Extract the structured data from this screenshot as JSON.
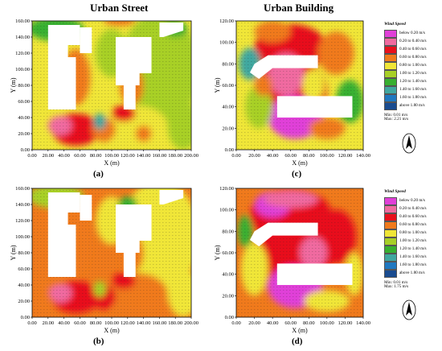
{
  "titles": {
    "left": "Urban Street",
    "right": "Urban Building"
  },
  "legend": {
    "title": "Wind Speed",
    "entries": [
      {
        "label": "below 0.20 m/s",
        "color": "#e040d8"
      },
      {
        "label": "0.20 to 0.40 m/s",
        "color": "#f06aa0"
      },
      {
        "label": "0.40 to 0.60 m/s",
        "color": "#e8101c"
      },
      {
        "label": "0.60 to 0.80 m/s",
        "color": "#f07a1c"
      },
      {
        "label": "0.80 to 1.00 m/s",
        "color": "#f0e638"
      },
      {
        "label": "1.00 to 1.20 m/s",
        "color": "#a8d028"
      },
      {
        "label": "1.20 to 1.40 m/s",
        "color": "#38b030"
      },
      {
        "label": "1.40 to 1.60 m/s",
        "color": "#40a8a0"
      },
      {
        "label": "1.60 to 1.80 m/s",
        "color": "#2078c0"
      },
      {
        "label": "above 1.80 m/s",
        "color": "#1a4c90"
      }
    ]
  },
  "chart_data": [
    {
      "type": "heatmap",
      "panel": "(a)",
      "xlabel": "X (m)",
      "ylabel": "Y (m)",
      "xlim": [
        0,
        200
      ],
      "ylim": [
        0,
        160
      ],
      "xticks": [
        "0.00",
        "20.00",
        "40.00",
        "60.00",
        "80.00",
        "100.00",
        "120.00",
        "140.00",
        "160.00",
        "180.00",
        "200.00"
      ],
      "yticks": [
        "0.00",
        "20.00",
        "40.00",
        "60.00",
        "80.00",
        "100.00",
        "120.00",
        "140.00",
        "160.00"
      ],
      "min": "",
      "max": ""
    },
    {
      "type": "heatmap",
      "panel": "(c)",
      "xlabel": "X (m)",
      "ylabel": "Y (m)",
      "xlim": [
        0,
        140
      ],
      "ylim": [
        0,
        120
      ],
      "xticks": [
        "0.00",
        "20.00",
        "40.00",
        "60.00",
        "80.00",
        "100.00",
        "120.00",
        "140.00"
      ],
      "yticks": [
        "0.00",
        "20.00",
        "40.00",
        "60.00",
        "80.00",
        "100.00",
        "120.00"
      ],
      "min": "Min: 0.01 m/s",
      "max": "Max: 2.21 m/s"
    },
    {
      "type": "heatmap",
      "panel": "(b)",
      "xlabel": "X (m)",
      "ylabel": "Y (m)",
      "xlim": [
        0,
        200
      ],
      "ylim": [
        0,
        160
      ],
      "xticks": [
        "0.00",
        "20.00",
        "40.00",
        "60.00",
        "80.00",
        "100.00",
        "120.00",
        "140.00",
        "160.00",
        "180.00",
        "200.00"
      ],
      "yticks": [
        "0.00",
        "20.00",
        "40.00",
        "60.00",
        "80.00",
        "100.00",
        "120.00",
        "140.00",
        "160.00"
      ],
      "min": "",
      "max": ""
    },
    {
      "type": "heatmap",
      "panel": "(d)",
      "xlabel": "X (m)",
      "ylabel": "Y (m)",
      "xlim": [
        0,
        140
      ],
      "ylim": [
        0,
        120
      ],
      "xticks": [
        "0.00",
        "20.00",
        "40.00",
        "60.00",
        "80.00",
        "100.00",
        "120.00",
        "140.00"
      ],
      "yticks": [
        "0.00",
        "20.00",
        "40.00",
        "60.00",
        "80.00",
        "100.00",
        "120.00"
      ],
      "min": "Min: 0.01 m/s",
      "max": "Max: 1.75 m/s"
    }
  ]
}
